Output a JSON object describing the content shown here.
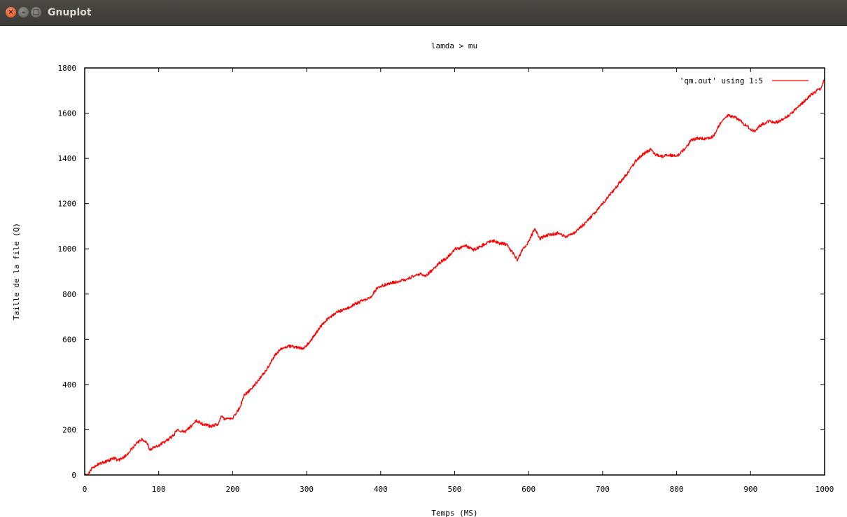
{
  "window": {
    "title": "Gnuplot",
    "close_glyph": "×",
    "minimize_glyph": "–",
    "maximize_glyph": "□"
  },
  "chart_data": {
    "type": "line",
    "title": "lamda > mu",
    "xlabel": "Temps (MS)",
    "ylabel": "Taille de la file (Q)",
    "xlim": [
      0,
      1000
    ],
    "ylim": [
      0,
      1800
    ],
    "x_ticks": [
      0,
      100,
      200,
      300,
      400,
      500,
      600,
      700,
      800,
      900,
      1000
    ],
    "y_ticks": [
      0,
      200,
      400,
      600,
      800,
      1000,
      1200,
      1400,
      1600,
      1800
    ],
    "grid": false,
    "legend_position": "top-right",
    "series": [
      {
        "name": "'qm.out' using 1:5",
        "color": "#ff0000",
        "x": [
          0,
          5,
          10,
          20,
          30,
          40,
          45,
          50,
          60,
          70,
          78,
          85,
          88,
          95,
          100,
          110,
          120,
          125,
          135,
          145,
          150,
          160,
          170,
          180,
          185,
          190,
          200,
          210,
          215,
          225,
          235,
          245,
          255,
          265,
          275,
          285,
          295,
          305,
          315,
          325,
          340,
          355,
          365,
          375,
          385,
          395,
          405,
          415,
          425,
          435,
          445,
          455,
          460,
          470,
          480,
          490,
          500,
          505,
          515,
          525,
          535,
          545,
          552,
          560,
          570,
          580,
          585,
          592,
          600,
          608,
          615,
          625,
          640,
          650,
          660,
          675,
          690,
          700,
          710,
          720,
          735,
          745,
          755,
          765,
          770,
          780,
          790,
          800,
          810,
          820,
          830,
          840,
          850,
          860,
          870,
          880,
          890,
          900,
          905,
          915,
          925,
          935,
          945,
          955,
          965,
          975,
          985,
          995,
          1000
        ],
        "y": [
          0,
          5,
          30,
          50,
          60,
          75,
          65,
          70,
          100,
          140,
          160,
          135,
          110,
          125,
          130,
          150,
          175,
          200,
          190,
          220,
          240,
          225,
          215,
          225,
          260,
          245,
          250,
          300,
          350,
          380,
          420,
          460,
          520,
          560,
          570,
          565,
          560,
          590,
          640,
          680,
          720,
          735,
          755,
          770,
          780,
          825,
          840,
          850,
          855,
          865,
          880,
          890,
          880,
          905,
          940,
          960,
          1000,
          1000,
          1015,
          995,
          1010,
          1030,
          1035,
          1025,
          1020,
          975,
          950,
          1000,
          1030,
          1090,
          1045,
          1060,
          1070,
          1055,
          1065,
          1110,
          1160,
          1200,
          1240,
          1280,
          1340,
          1390,
          1420,
          1440,
          1420,
          1410,
          1415,
          1410,
          1440,
          1480,
          1490,
          1485,
          1500,
          1560,
          1590,
          1580,
          1555,
          1530,
          1520,
          1550,
          1565,
          1560,
          1575,
          1600,
          1630,
          1660,
          1690,
          1710,
          1750
        ]
      }
    ]
  }
}
